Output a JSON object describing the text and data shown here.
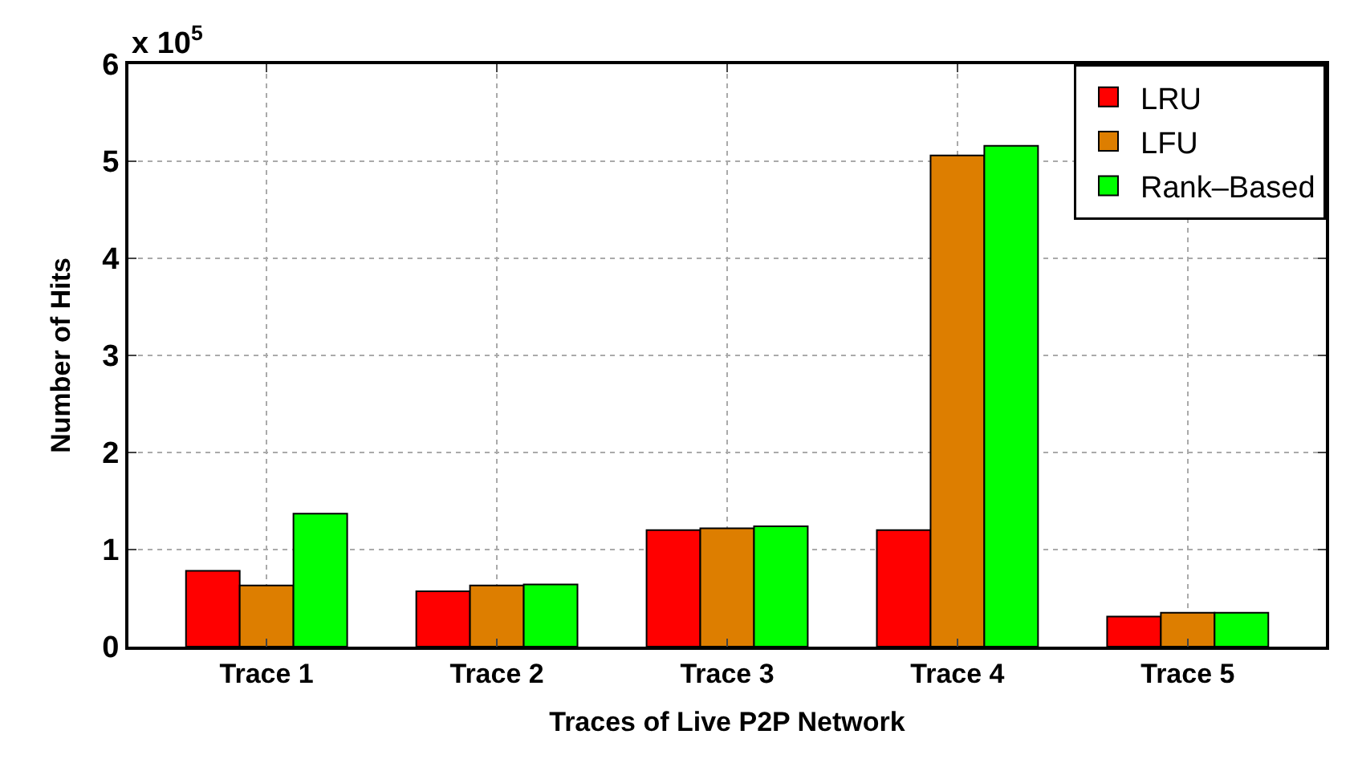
{
  "chart_data": {
    "type": "bar",
    "xlabel": "Traces of Live P2P Network",
    "ylabel": "Number of Hits",
    "annotations": [
      "x 10$^{5}$"
    ],
    "categories": [
      "Trace 1",
      "Trace 2",
      "Trace 3",
      "Trace 4",
      "Trace 5"
    ],
    "series": [
      {
        "name": "LRU",
        "color": "#ff0000",
        "values": [
          0.78,
          0.57,
          1.2,
          1.2,
          0.31
        ]
      },
      {
        "name": "LFU",
        "color": "#dd7e00",
        "values": [
          0.63,
          0.63,
          1.22,
          5.06,
          0.35
        ]
      },
      {
        "name": "Rank–Based",
        "color": "#00ff00",
        "values": [
          1.37,
          0.64,
          1.24,
          5.16,
          0.35
        ]
      }
    ],
    "ylim": [
      0,
      6
    ],
    "yticks": [
      0,
      1,
      2,
      3,
      4,
      5,
      6
    ],
    "grid": true,
    "legend": "top right"
  }
}
